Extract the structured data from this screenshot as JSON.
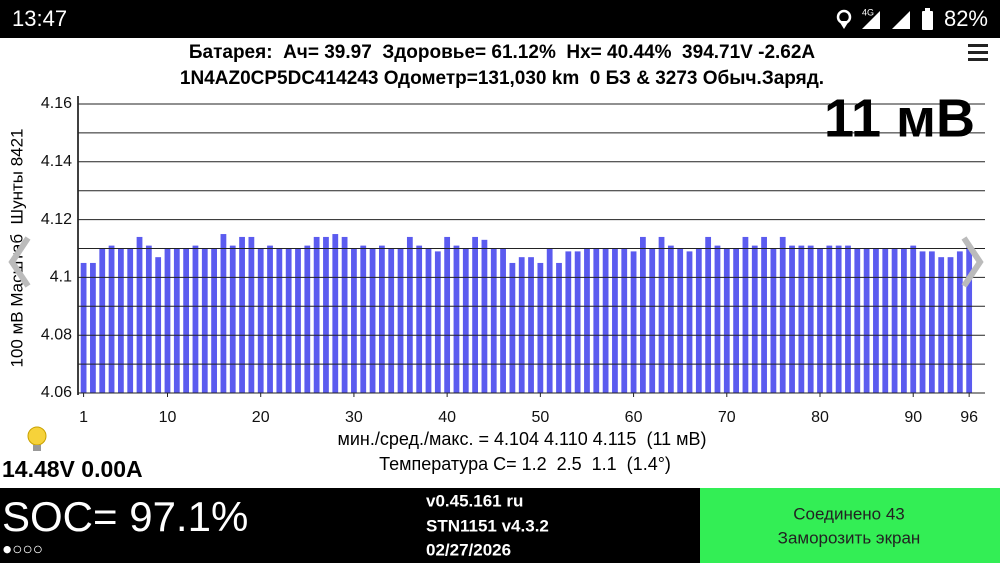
{
  "status_bar": {
    "time": "13:47",
    "battery": "82%"
  },
  "header": {
    "line1": "Батарея:  Ач= 39.97  Здоровье= 61.12%  Нх= 40.44%  394.71V -2.62A",
    "line2": "1N4AZ0CP5DC414243 Одометр=131,030 km  0 БЗ & 3273 Обыч.Заряд."
  },
  "chart_data": {
    "type": "bar",
    "y_label": "100 мВ Масштаб  Шунты 8421",
    "annotation": "11 мВ",
    "stats_line": "мин./сред./макс. = 4.104 4.110 4.115  (11 мВ)",
    "temp_line": "Температура C= 1.2  2.5  1.1  (1.4°)",
    "color": "#5b5bef",
    "x": [
      1,
      2,
      3,
      4,
      5,
      6,
      7,
      8,
      9,
      10,
      11,
      12,
      13,
      14,
      15,
      16,
      17,
      18,
      19,
      20,
      21,
      22,
      23,
      24,
      25,
      26,
      27,
      28,
      29,
      30,
      31,
      32,
      33,
      34,
      35,
      36,
      37,
      38,
      39,
      40,
      41,
      42,
      43,
      44,
      45,
      46,
      47,
      48,
      49,
      50,
      51,
      52,
      53,
      54,
      55,
      56,
      57,
      58,
      59,
      60,
      61,
      62,
      63,
      64,
      65,
      66,
      67,
      68,
      69,
      70,
      71,
      72,
      73,
      74,
      75,
      76,
      77,
      78,
      79,
      80,
      81,
      82,
      83,
      84,
      85,
      86,
      87,
      88,
      89,
      90,
      91,
      92,
      93,
      94,
      95,
      96
    ],
    "values": [
      4.105,
      4.105,
      4.11,
      4.111,
      4.11,
      4.11,
      4.114,
      4.111,
      4.107,
      4.11,
      4.11,
      4.11,
      4.111,
      4.11,
      4.11,
      4.115,
      4.111,
      4.114,
      4.114,
      4.11,
      4.111,
      4.11,
      4.11,
      4.11,
      4.111,
      4.114,
      4.114,
      4.115,
      4.114,
      4.11,
      4.111,
      4.11,
      4.111,
      4.11,
      4.11,
      4.114,
      4.111,
      4.11,
      4.109,
      4.114,
      4.111,
      4.11,
      4.114,
      4.113,
      4.11,
      4.11,
      4.105,
      4.107,
      4.107,
      4.105,
      4.11,
      4.105,
      4.109,
      4.109,
      4.11,
      4.11,
      4.11,
      4.11,
      4.11,
      4.109,
      4.114,
      4.11,
      4.114,
      4.111,
      4.11,
      4.109,
      4.11,
      4.114,
      4.111,
      4.11,
      4.11,
      4.114,
      4.111,
      4.114,
      4.11,
      4.114,
      4.111,
      4.111,
      4.111,
      4.11,
      4.111,
      4.111,
      4.111,
      4.11,
      4.11,
      4.11,
      4.11,
      4.11,
      4.11,
      4.111,
      4.109,
      4.109,
      4.107,
      4.107,
      4.109,
      4.111
    ],
    "xlim": [
      0.4,
      97.7
    ],
    "xticks": [
      1,
      10,
      20,
      30,
      40,
      50,
      60,
      70,
      80,
      90,
      96
    ],
    "ylim": [
      4.06,
      4.16
    ],
    "yticks": [
      4.06,
      4.08,
      4.1,
      4.12,
      4.14,
      4.16
    ],
    "minor_grid": [
      4.07,
      4.09,
      4.11,
      4.13,
      4.15
    ],
    "grid": true
  },
  "pack_reading": "14.48V 0.00A",
  "footer": {
    "soc": "SOC= 97.1%",
    "pages": "●○○○",
    "version": "v0.45.161 ru",
    "device": "STN1151 v4.3.2",
    "date": "02/27/2026",
    "status": "Соединено 43",
    "freeze": "Заморозить экран"
  }
}
